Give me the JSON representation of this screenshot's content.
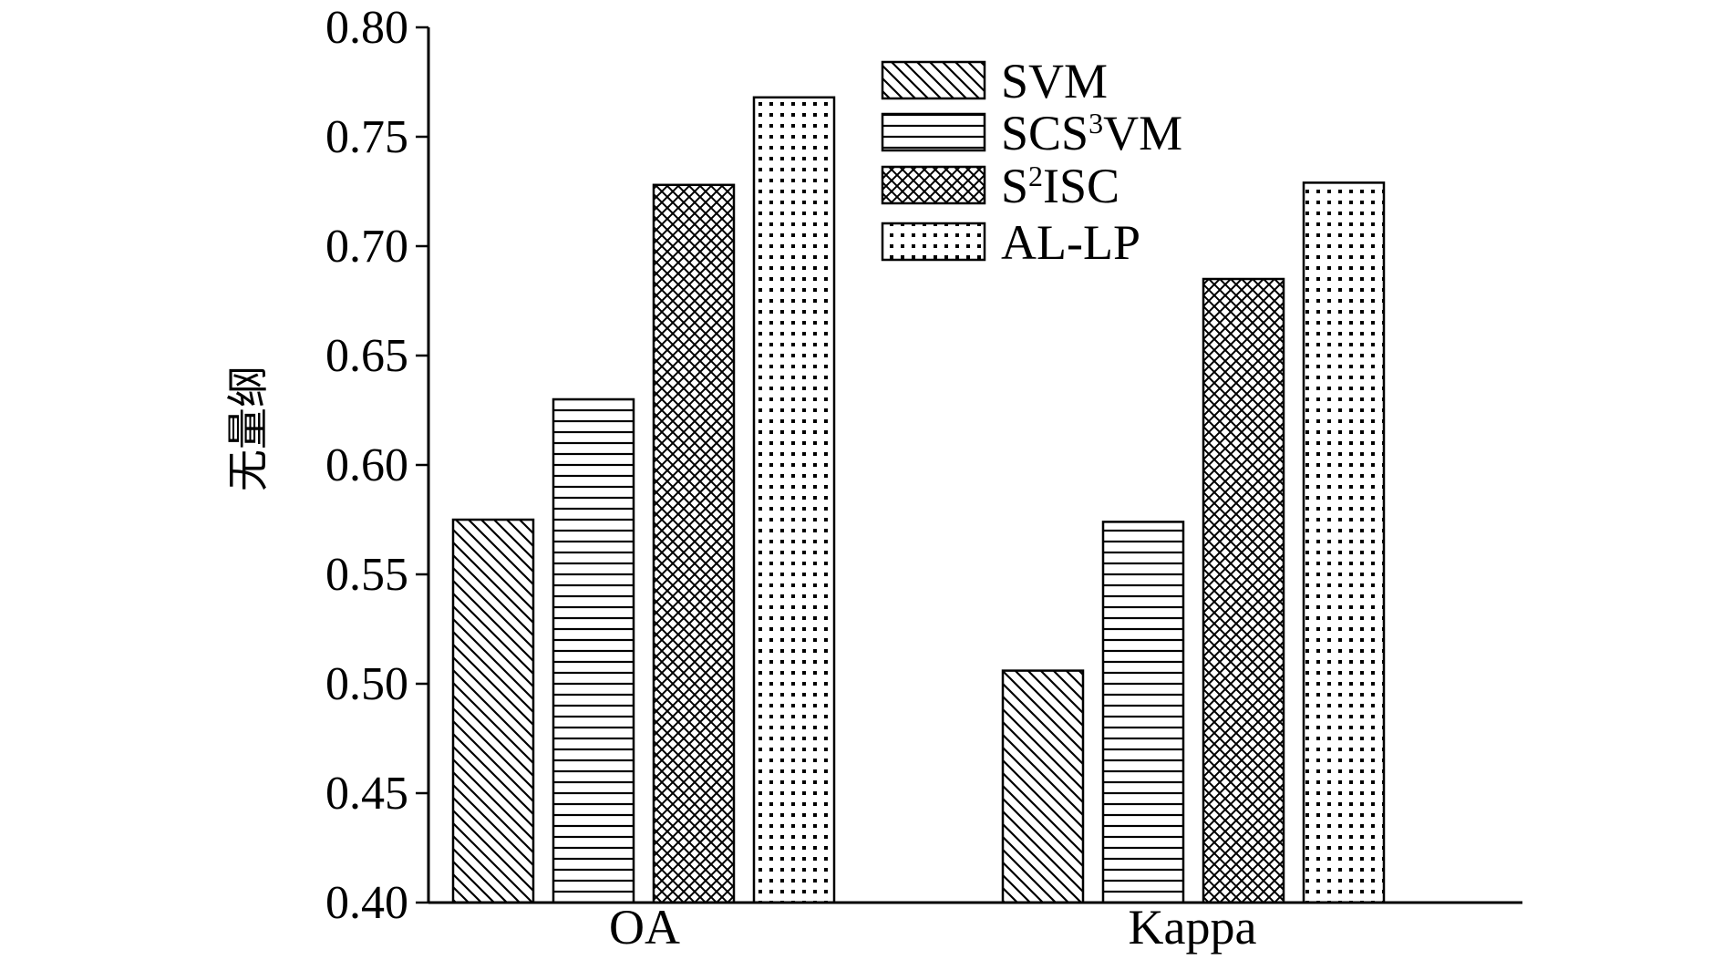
{
  "chart_data": {
    "type": "bar",
    "categories": [
      "OA",
      "Kappa"
    ],
    "series": [
      {
        "name": "SVM",
        "values": [
          0.575,
          0.506
        ],
        "pattern": "diagonal-hatch"
      },
      {
        "name": "SCS³VM",
        "name_base": "SCS",
        "name_sup": "3",
        "name_tail": "VM",
        "values": [
          0.63,
          0.574
        ],
        "pattern": "horizontal-lines"
      },
      {
        "name": "S²ISC",
        "name_base": "S",
        "name_sup": "2",
        "name_tail": "ISC",
        "values": [
          0.728,
          0.685
        ],
        "pattern": "crosshatch"
      },
      {
        "name": "AL-LP",
        "values": [
          0.768,
          0.729
        ],
        "pattern": "dots"
      }
    ],
    "xlabel": "",
    "ylabel": "无量纲",
    "ylim": [
      0.4,
      0.8
    ],
    "yticks": [
      "0.40",
      "0.45",
      "0.50",
      "0.55",
      "0.60",
      "0.65",
      "0.70",
      "0.75",
      "0.80"
    ],
    "grid": false,
    "legend_position": "top-center"
  }
}
